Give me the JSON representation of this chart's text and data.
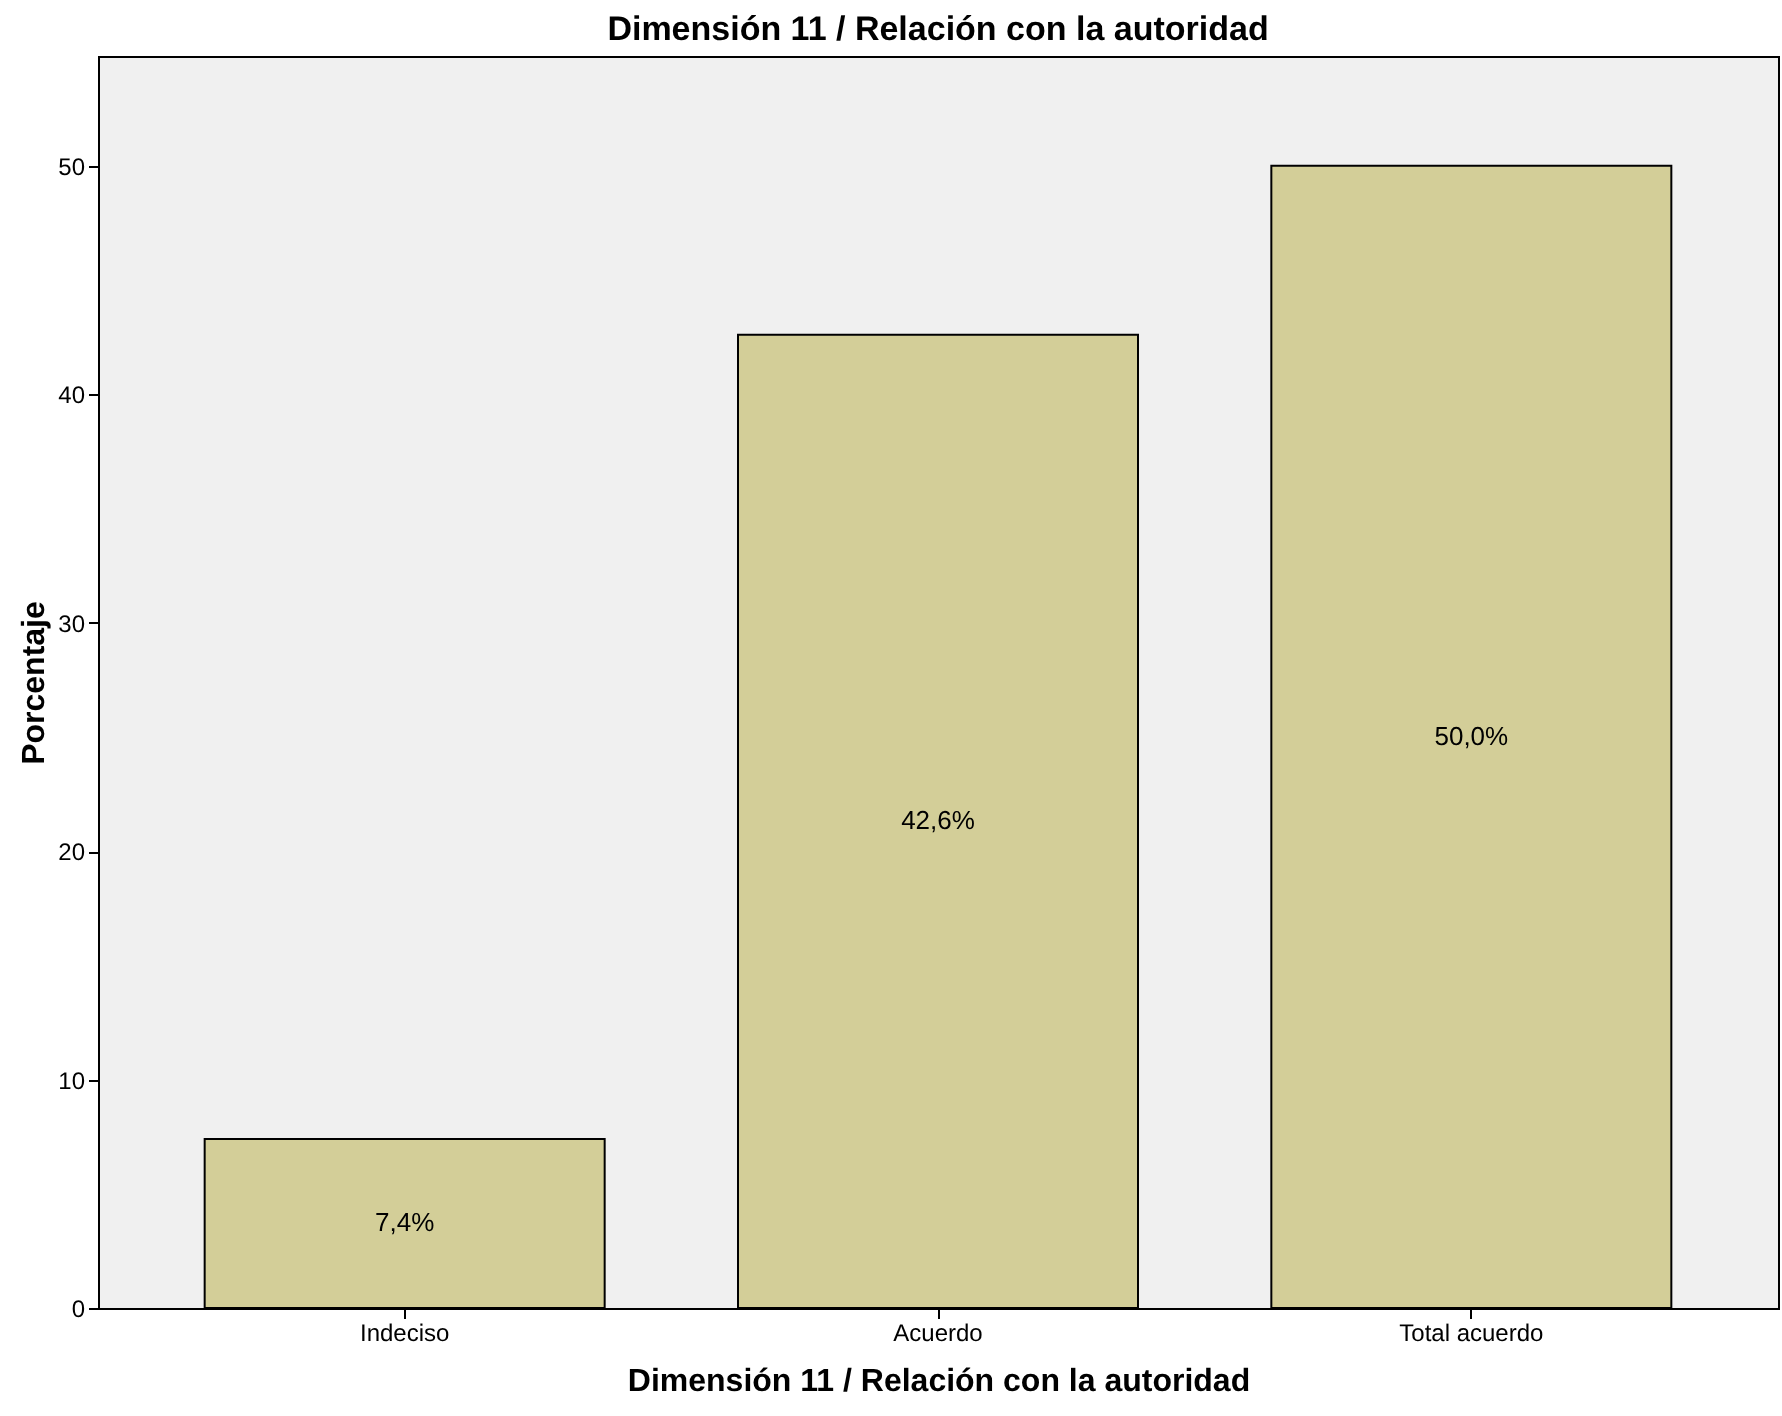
{
  "chart_data": {
    "type": "bar",
    "title": "Dimensión 11 / Relación con la autoridad",
    "xlabel": "Dimensión 11 / Relación con la autoridad",
    "ylabel": "Porcentaje",
    "categories": [
      "Indeciso",
      "Acuerdo",
      "Total acuerdo"
    ],
    "values": [
      7.4,
      42.6,
      50.0
    ],
    "value_labels": [
      "7,4%",
      "42,6%",
      "50,0%"
    ],
    "color": "#d3ce98",
    "ylim": [
      0,
      54.8
    ],
    "yticks": [
      0,
      10,
      20,
      30,
      40,
      50
    ],
    "grid": false
  }
}
